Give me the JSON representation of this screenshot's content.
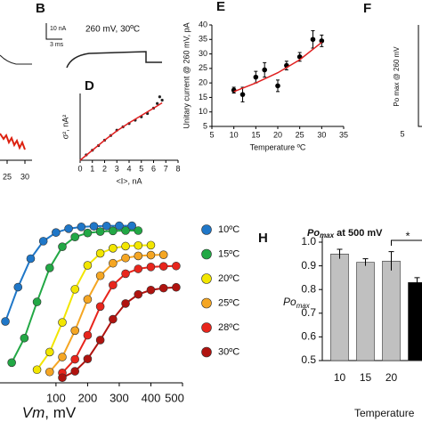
{
  "chart_data": [
    {
      "type": "scatter",
      "panel": "D",
      "xlabel": "<I>, nA",
      "ylabel": "σ², nA²",
      "xlim": [
        0,
        8
      ],
      "xticks": [
        0,
        1,
        2,
        3,
        4,
        5,
        6,
        7,
        8
      ],
      "ylim": [
        0,
        1
      ],
      "x": [
        0.5,
        1,
        1.5,
        2,
        2.5,
        3,
        3.5,
        4,
        4.5,
        5,
        5.5,
        6,
        6.3,
        6.5,
        6.7
      ],
      "values": [
        0.08,
        0.15,
        0.22,
        0.3,
        0.37,
        0.45,
        0.5,
        0.55,
        0.6,
        0.65,
        0.7,
        0.78,
        0.85,
        0.95,
        0.9
      ],
      "color": "#222222",
      "fit": {
        "color": "#e02020",
        "x": [
          0,
          1,
          2,
          3,
          4,
          5,
          6,
          6.7
        ],
        "values": [
          0,
          0.15,
          0.3,
          0.44,
          0.56,
          0.67,
          0.78,
          0.86
        ]
      }
    },
    {
      "type": "scatter",
      "panel": "E",
      "xlabel": "Temperature ºC",
      "ylabel": "Unitary current @ 260 mV, pA",
      "xlim": [
        5,
        35
      ],
      "xticks": [
        5,
        10,
        15,
        20,
        25,
        30,
        35
      ],
      "ylim": [
        5,
        40
      ],
      "yticks": [
        5,
        10,
        15,
        20,
        25,
        30,
        35,
        40
      ],
      "x": [
        10,
        12,
        15,
        17,
        20,
        22,
        25,
        28,
        30
      ],
      "values": [
        17.5,
        16,
        22,
        24.5,
        19,
        26,
        29,
        35,
        34.5
      ],
      "errors": [
        1,
        2.5,
        2,
        2.5,
        2,
        1.5,
        1.5,
        3,
        2
      ],
      "color": "#000000",
      "fit": {
        "color": "#e02020",
        "x": [
          10,
          15,
          20,
          25,
          30
        ],
        "values": [
          17,
          20,
          23.5,
          28,
          34
        ]
      }
    },
    {
      "type": "line",
      "xlabel": [
        "Vm",
        ", mV"
      ],
      "xlim": [
        -77,
        500
      ],
      "xticks": [
        100,
        200,
        300,
        400,
        500
      ],
      "ylim": [
        0,
        1
      ],
      "series": [
        {
          "name": "10ºC",
          "color": "#1f77c8",
          "x": [
            -60,
            -20,
            20,
            60,
            100,
            140,
            180,
            220,
            260,
            300,
            340
          ],
          "values": [
            0.383,
            0.597,
            0.775,
            0.884,
            0.938,
            0.962,
            0.973,
            0.977,
            0.979,
            0.98,
            0.98
          ]
        },
        {
          "name": "15ºC",
          "color": "#22a845",
          "x": [
            -40,
            0,
            40,
            80,
            120,
            160,
            200,
            240,
            280,
            320,
            360
          ],
          "values": [
            0.126,
            0.279,
            0.505,
            0.717,
            0.849,
            0.91,
            0.935,
            0.944,
            0.948,
            0.95,
            0.95
          ]
        },
        {
          "name": "20ºC",
          "color": "#f2e600",
          "x": [
            40,
            80,
            120,
            160,
            200,
            240,
            280,
            320,
            360,
            400
          ],
          "values": [
            0.082,
            0.192,
            0.377,
            0.584,
            0.733,
            0.808,
            0.84,
            0.853,
            0.857,
            0.859
          ]
        },
        {
          "name": "25ºC",
          "color": "#f5a623",
          "x": [
            80,
            120,
            160,
            200,
            240,
            280,
            320,
            360,
            400,
            440
          ],
          "values": [
            0.068,
            0.161,
            0.326,
            0.521,
            0.668,
            0.746,
            0.779,
            0.792,
            0.797,
            0.799
          ]
        },
        {
          "name": "28ºC",
          "color": "#e8251c",
          "x": [
            120,
            160,
            200,
            240,
            280,
            320,
            360,
            400,
            440,
            480
          ],
          "values": [
            0.062,
            0.147,
            0.297,
            0.476,
            0.61,
            0.681,
            0.711,
            0.723,
            0.727,
            0.729
          ]
        },
        {
          "name": "30ºC",
          "color": "#b0130f",
          "x": [
            120,
            160,
            200,
            240,
            280,
            320,
            360,
            400,
            440,
            480
          ],
          "values": [
            0.032,
            0.072,
            0.149,
            0.267,
            0.397,
            0.495,
            0.552,
            0.579,
            0.591,
            0.596
          ]
        }
      ]
    },
    {
      "type": "bar",
      "panel": "H",
      "title": [
        "Po",
        "max",
        " at 500 mV"
      ],
      "ylabel": [
        "Po",
        "max"
      ],
      "xlabel": "Temperature",
      "categories": [
        "10",
        "15",
        "20",
        null
      ],
      "values": [
        0.95,
        0.915,
        0.92,
        0.83
      ],
      "errors": [
        0.02,
        0.015,
        0.04,
        0.02
      ],
      "colors": [
        "#c0c0c0",
        "#c0c0c0",
        "#c0c0c0",
        "#000000"
      ],
      "ylim": [
        0.5,
        1
      ],
      "yticks": [
        0.5,
        0.6,
        0.7,
        0.8,
        0.9,
        {
          "value": 1,
          "label": "1.0"
        }
      ],
      "annotation": "*"
    }
  ],
  "panel_a": {
    "xtick_labels": [
      "25",
      "30"
    ]
  },
  "panel_b": {
    "label": "B",
    "scale_current": "10 nA",
    "scale_time": "3 ms",
    "condition": "260 mV, 30ºC"
  },
  "panel_f": {
    "label": "F",
    "ylabel": "Po max @ 260 mV",
    "xtick_label": "5"
  }
}
